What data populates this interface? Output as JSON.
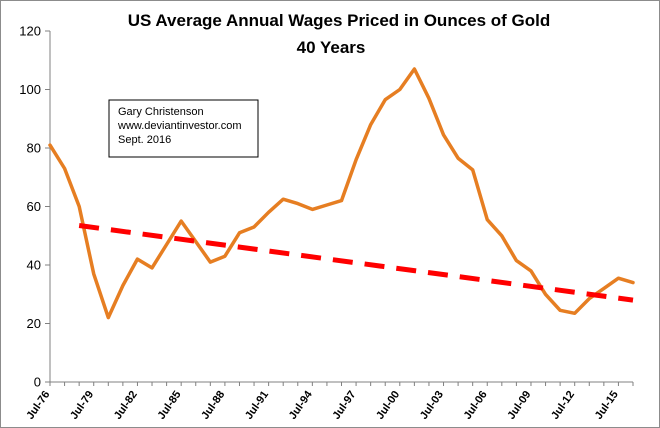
{
  "chart_data": {
    "type": "line",
    "title": "US Average Annual Wages Priced in Ounces of Gold",
    "subtitle": "40 Years",
    "xlabel": "",
    "ylabel": "",
    "ylim": [
      0,
      120
    ],
    "yticks": [
      0,
      20,
      40,
      60,
      80,
      100,
      120
    ],
    "x": [
      "1976",
      "1977",
      "1978",
      "1979",
      "1980",
      "1981",
      "1982",
      "1983",
      "1984",
      "1985",
      "1986",
      "1987",
      "1988",
      "1989",
      "1990",
      "1991",
      "1992",
      "1993",
      "1994",
      "1995",
      "1996",
      "1997",
      "1998",
      "1999",
      "2000",
      "2001",
      "2002",
      "2003",
      "2004",
      "2005",
      "2006",
      "2007",
      "2008",
      "2009",
      "2010",
      "2011",
      "2012",
      "2013",
      "2014",
      "2015",
      "2016"
    ],
    "xtick_labels": [
      {
        "x": "1976",
        "label": "Jul-76"
      },
      {
        "x": "1979",
        "label": "Jul-79"
      },
      {
        "x": "1982",
        "label": "Jul-82"
      },
      {
        "x": "1985",
        "label": "Jul-85"
      },
      {
        "x": "1988",
        "label": "Jul-88"
      },
      {
        "x": "1991",
        "label": "Jul-91"
      },
      {
        "x": "1994",
        "label": "Jul-94"
      },
      {
        "x": "1997",
        "label": "Jul-97"
      },
      {
        "x": "2000",
        "label": "Jul-00"
      },
      {
        "x": "2003",
        "label": "Jul-03"
      },
      {
        "x": "2006",
        "label": "Jul-06"
      },
      {
        "x": "2009",
        "label": "Jul-09"
      },
      {
        "x": "2012",
        "label": "Jul-12"
      },
      {
        "x": "2015",
        "label": "Jul-15"
      }
    ],
    "series": [
      {
        "values": [
          81,
          73,
          60,
          37,
          22,
          33,
          42,
          39,
          47,
          55,
          48,
          41,
          43,
          51,
          53,
          58,
          62.5,
          61,
          59,
          60.5,
          62,
          76,
          88,
          96.5,
          100,
          107,
          97,
          84.5,
          76.5,
          72.5,
          55.5,
          50,
          41.5,
          38,
          30,
          24.5,
          23.5,
          28.5,
          32,
          35.5,
          34
        ],
        "color": "#e67e22"
      }
    ],
    "trendline": {
      "from": {
        "x": "1978",
        "y": 53.5
      },
      "to": {
        "x": "2016",
        "y": 28
      },
      "color": "#ff0000",
      "style": "dashed"
    },
    "grid": false,
    "legend": "none",
    "annotation": {
      "lines": [
        "Gary Christenson",
        "www.deviantinvestor.com",
        "Sept. 2016"
      ]
    }
  }
}
